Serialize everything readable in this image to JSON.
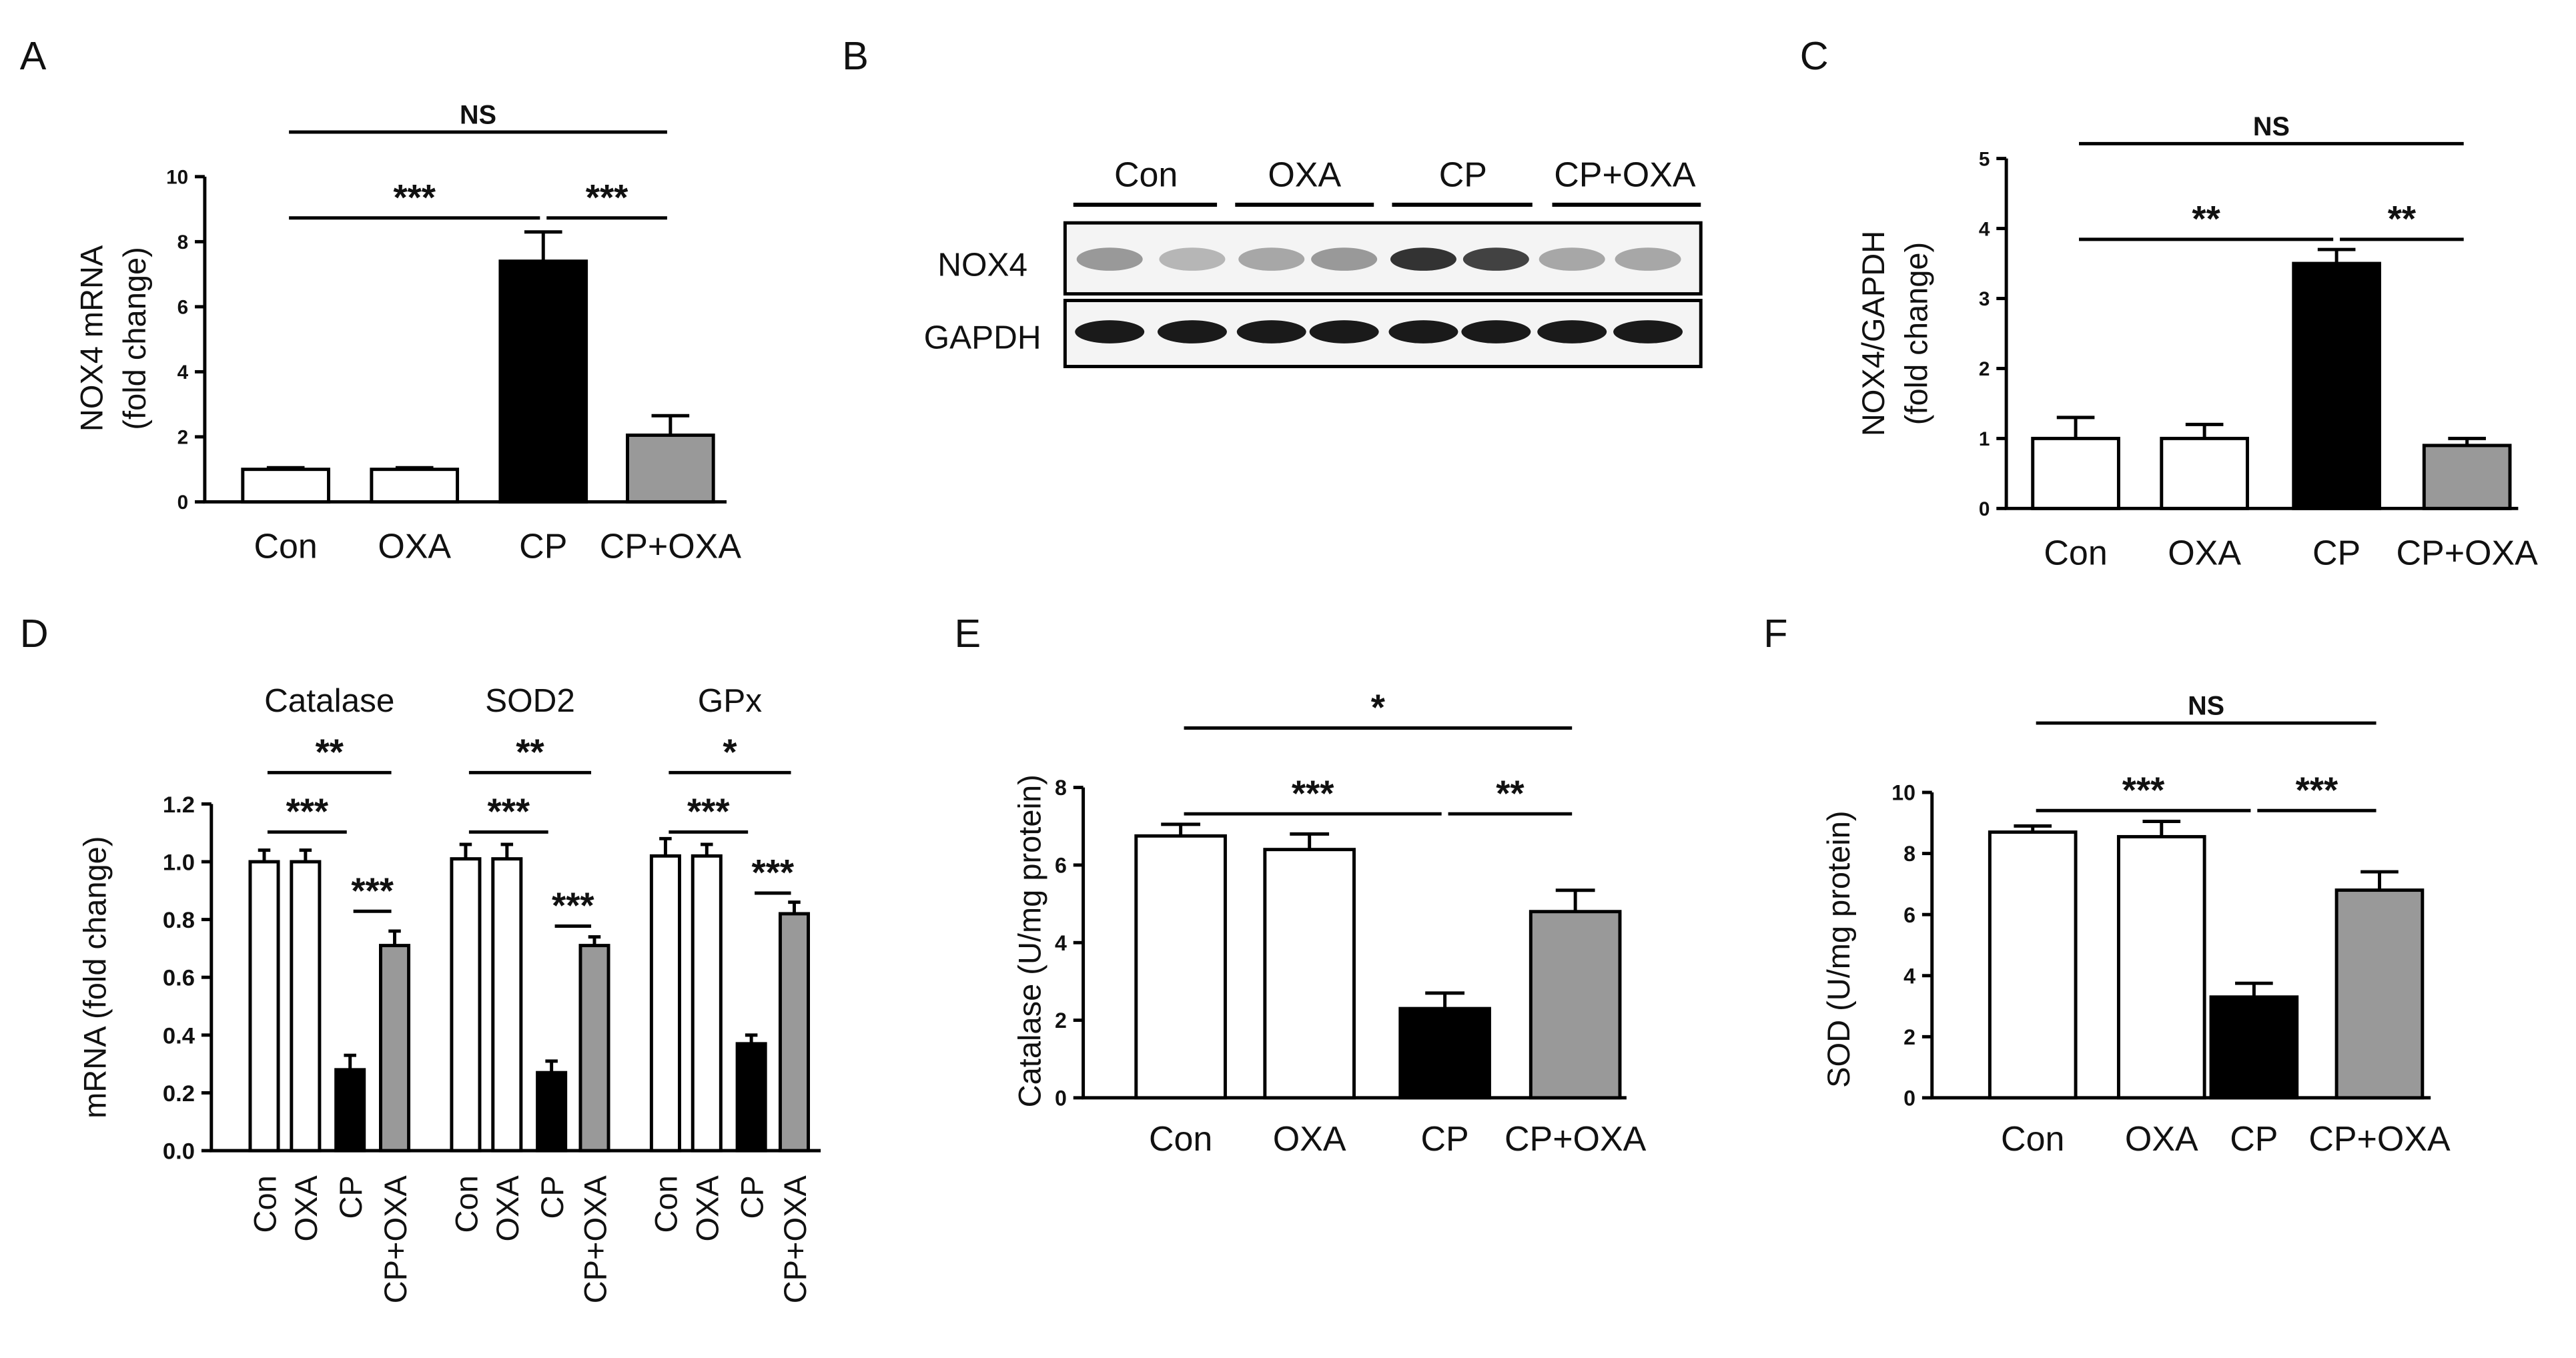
{
  "chart_data": [
    {
      "type": "bar",
      "panel": "A",
      "ylabel": [
        "NOX4 mRNA",
        "(fold change)"
      ],
      "categories": [
        "Con",
        "OXA",
        "CP",
        "CP+OXA"
      ],
      "values": [
        1.0,
        1.0,
        7.4,
        2.05
      ],
      "errors": [
        0.05,
        0.05,
        0.9,
        0.6
      ],
      "colors": [
        "#ffffff",
        "#ffffff",
        "#000000",
        "#999999"
      ],
      "ylim": [
        0,
        10
      ],
      "yticks": [
        0,
        2,
        4,
        6,
        8,
        10
      ],
      "comparisons": [
        {
          "label": "NS",
          "groups": [
            0,
            3
          ]
        },
        {
          "label": "***",
          "groups": [
            0,
            2
          ]
        },
        {
          "label": "***",
          "groups": [
            2,
            3
          ]
        }
      ]
    },
    {
      "type": "bar",
      "panel": "C",
      "ylabel": [
        "NOX4/GAPDH",
        "(fold change)"
      ],
      "categories": [
        "Con",
        "OXA",
        "CP",
        "CP+OXA"
      ],
      "values": [
        1.0,
        1.0,
        3.5,
        0.9
      ],
      "errors": [
        0.3,
        0.2,
        0.2,
        0.1
      ],
      "colors": [
        "#ffffff",
        "#ffffff",
        "#000000",
        "#999999"
      ],
      "ylim": [
        0,
        5
      ],
      "yticks": [
        0,
        1,
        2,
        3,
        4,
        5
      ],
      "comparisons": [
        {
          "label": "NS",
          "groups": [
            0,
            3
          ]
        },
        {
          "label": "**",
          "groups": [
            0,
            2
          ]
        },
        {
          "label": "**",
          "groups": [
            2,
            3
          ]
        }
      ]
    },
    {
      "type": "grouped_bar",
      "panel": "D",
      "ylabel": [
        "mRNA (fold change)"
      ],
      "categories": [
        "Con",
        "OXA",
        "CP",
        "CP+OXA"
      ],
      "colors": [
        "#ffffff",
        "#ffffff",
        "#000000",
        "#999999"
      ],
      "ylim": [
        0,
        1.2
      ],
      "yticks": [
        {
          "value": 0,
          "label": "0.0"
        },
        0.2,
        0.4,
        0.6,
        0.8,
        {
          "value": 1,
          "label": "1.0"
        },
        1.2
      ],
      "series": [
        {
          "name": "Catalase",
          "values": [
            1.0,
            1.0,
            0.28,
            0.71
          ],
          "errors": [
            0.04,
            0.04,
            0.05,
            0.05
          ],
          "comparisons": [
            {
              "label": "**",
              "groups": [
                0,
                3
              ]
            },
            {
              "label": "***",
              "groups": [
                0,
                2
              ]
            },
            {
              "label": "***",
              "groups": [
                2,
                3
              ]
            }
          ]
        },
        {
          "name": "SOD2",
          "values": [
            1.01,
            1.01,
            0.27,
            0.71
          ],
          "errors": [
            0.05,
            0.05,
            0.04,
            0.03
          ],
          "comparisons": [
            {
              "label": "**",
              "groups": [
                0,
                3
              ]
            },
            {
              "label": "***",
              "groups": [
                0,
                2
              ]
            },
            {
              "label": "***",
              "groups": [
                2,
                3
              ]
            }
          ]
        },
        {
          "name": "GPx",
          "values": [
            1.02,
            1.02,
            0.37,
            0.82
          ],
          "errors": [
            0.06,
            0.04,
            0.03,
            0.04
          ],
          "comparisons": [
            {
              "label": "*",
              "groups": [
                0,
                3
              ]
            },
            {
              "label": "***",
              "groups": [
                0,
                2
              ]
            },
            {
              "label": "***",
              "groups": [
                2,
                3
              ]
            }
          ]
        }
      ]
    },
    {
      "type": "bar",
      "panel": "E",
      "ylabel": [
        "Catalase (U/mg protein)"
      ],
      "categories": [
        "Con",
        "OXA",
        "CP",
        "CP+OXA"
      ],
      "values": [
        6.75,
        6.4,
        2.3,
        4.8
      ],
      "errors": [
        0.3,
        0.4,
        0.4,
        0.55
      ],
      "colors": [
        "#ffffff",
        "#ffffff",
        "#000000",
        "#999999"
      ],
      "ylim": [
        0,
        8
      ],
      "yticks": [
        0,
        2,
        4,
        6,
        8
      ],
      "comparisons": [
        {
          "label": "*",
          "groups": [
            0,
            3
          ]
        },
        {
          "label": "***",
          "groups": [
            0,
            2
          ]
        },
        {
          "label": "**",
          "groups": [
            2,
            3
          ]
        }
      ]
    },
    {
      "type": "bar",
      "panel": "F",
      "ylabel": [
        "SOD (U/mg protein)"
      ],
      "categories": [
        "Con",
        "OXA",
        "CP",
        "CP+OXA"
      ],
      "values": [
        8.7,
        8.55,
        3.3,
        6.8
      ],
      "errors": [
        0.2,
        0.5,
        0.45,
        0.6
      ],
      "colors": [
        "#ffffff",
        "#ffffff",
        "#000000",
        "#999999"
      ],
      "ylim": [
        0,
        10
      ],
      "yticks": [
        0,
        2,
        4,
        6,
        8,
        10
      ],
      "comparisons": [
        {
          "label": "NS",
          "groups": [
            0,
            3
          ]
        },
        {
          "label": "***",
          "groups": [
            0,
            2
          ]
        },
        {
          "label": "***",
          "groups": [
            2,
            3
          ]
        }
      ]
    }
  ],
  "blot": {
    "panel": "B",
    "lanes": [
      "Con",
      "OXA",
      "CP",
      "CP+OXA"
    ],
    "rows": [
      "NOX4",
      "GAPDH"
    ]
  }
}
